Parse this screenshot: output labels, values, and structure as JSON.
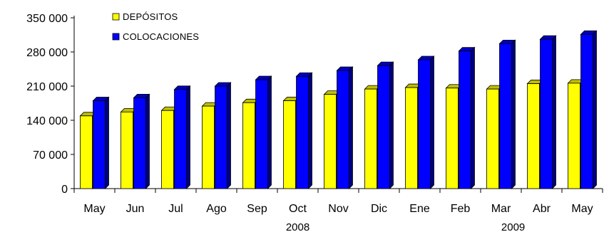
{
  "chart_data": {
    "type": "bar",
    "title": "",
    "xlabel": "",
    "ylabel": "",
    "categories": [
      "May",
      "Jun",
      "Jul",
      "Ago",
      "Sep",
      "Oct",
      "Nov",
      "Dic",
      "Ene",
      "Feb",
      "Mar",
      "Abr",
      "May"
    ],
    "year_labels": [
      "2008",
      "2009"
    ],
    "series": [
      {
        "name": "DEPÓSITOS",
        "color": "#ffff00",
        "values": [
          149000,
          157000,
          160000,
          169000,
          176000,
          180000,
          193000,
          204000,
          207000,
          206000,
          204000,
          215000,
          216000
        ]
      },
      {
        "name": "COLOCACIONES",
        "color": "#0000ff",
        "values": [
          180000,
          186000,
          203000,
          210000,
          223000,
          230000,
          242000,
          252000,
          264000,
          282000,
          297000,
          306000,
          316000
        ]
      }
    ],
    "y_ticks": [
      "350 000",
      "280 000",
      "210 000",
      "140 000",
      "70 000",
      "0"
    ],
    "ylim": [
      0,
      350000
    ],
    "legend_position": "top-left",
    "grid": false,
    "style": "3d-bars"
  }
}
